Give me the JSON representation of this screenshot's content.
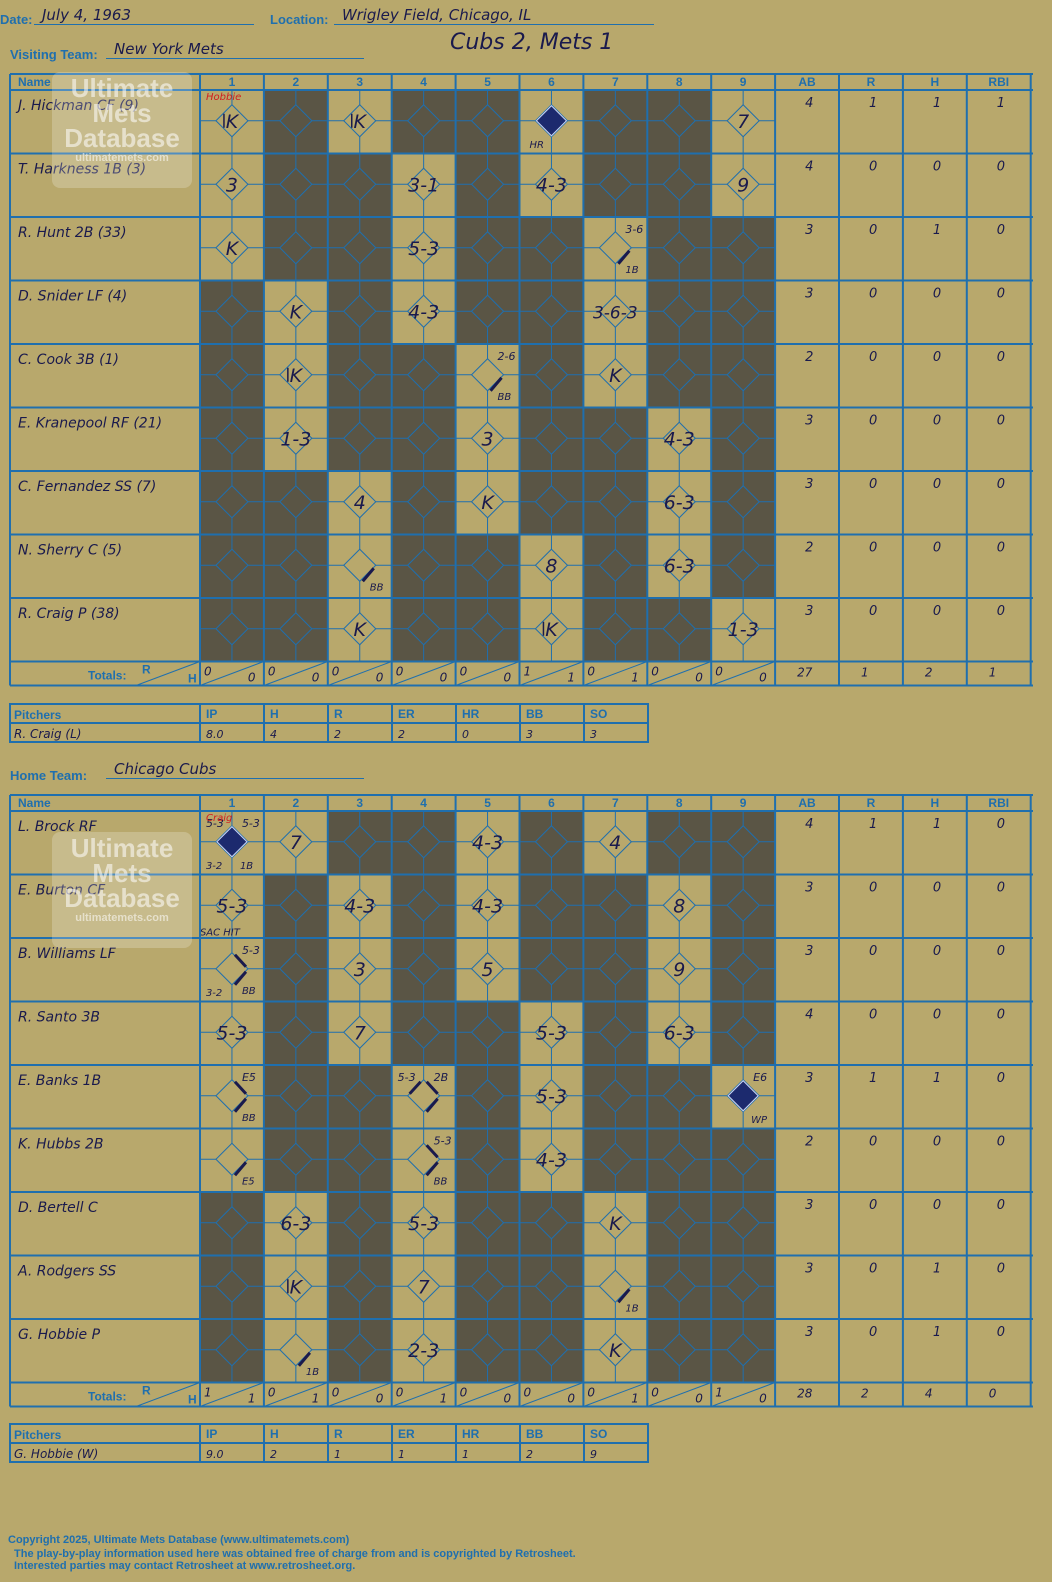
{
  "header": {
    "date_label": "Date:",
    "date_value": "July 4, 1963",
    "location_label": "Location:",
    "location_value": "Wrigley Field, Chicago, IL",
    "visiting_label": "Visiting Team:",
    "visiting_value": "New York Mets",
    "home_label": "Home Team:",
    "home_value": "Chicago Cubs",
    "headline": "Cubs 2, Mets 1"
  },
  "columns": {
    "name": "Name",
    "innings": [
      "1",
      "2",
      "3",
      "4",
      "5",
      "6",
      "7",
      "8",
      "9"
    ],
    "stats": [
      "AB",
      "R",
      "H",
      "RBI"
    ],
    "totals_label": "Totals:",
    "r_label": "R",
    "h_label": "H"
  },
  "watermark": {
    "line1": "Ultimate",
    "line2": "Mets",
    "line3": "Database",
    "url": "ultimatemets.com"
  },
  "visitors": {
    "pitcher_change_note": "Hobbie",
    "players": [
      {
        "name": "J. Hickman CF (9)",
        "stats": [
          "4",
          "1",
          "1",
          "1"
        ],
        "cells": [
          {
            "inn": 1,
            "text": "K",
            "rev": true
          },
          {
            "inn": 3,
            "text": "K",
            "rev": true
          },
          {
            "inn": 6,
            "run": true,
            "note": "HR"
          },
          {
            "inn": 9,
            "text": "7"
          }
        ]
      },
      {
        "name": "T. Harkness 1B (3)",
        "stats": [
          "4",
          "0",
          "0",
          "0"
        ],
        "cells": [
          {
            "inn": 1,
            "text": "3"
          },
          {
            "inn": 4,
            "text": "3-1"
          },
          {
            "inn": 6,
            "text": "4-3"
          },
          {
            "inn": 9,
            "text": "9"
          }
        ]
      },
      {
        "name": "R. Hunt 2B (33)",
        "stats": [
          "3",
          "0",
          "1",
          "0"
        ],
        "cells": [
          {
            "inn": 1,
            "text": "K"
          },
          {
            "inn": 4,
            "text": "5-3"
          },
          {
            "inn": 7,
            "hit": "1B",
            "corner": "3-6"
          }
        ]
      },
      {
        "name": "D. Snider LF (4)",
        "stats": [
          "3",
          "0",
          "0",
          "0"
        ],
        "cells": [
          {
            "inn": 2,
            "text": "K"
          },
          {
            "inn": 4,
            "text": "4-3"
          },
          {
            "inn": 7,
            "text": "3-6-3"
          }
        ]
      },
      {
        "name": "C. Cook 3B (1)",
        "stats": [
          "2",
          "0",
          "0",
          "0"
        ],
        "cells": [
          {
            "inn": 2,
            "text": "K",
            "rev": true
          },
          {
            "inn": 5,
            "hit": "BB",
            "corner": "2-6"
          },
          {
            "inn": 7,
            "text": "K"
          }
        ]
      },
      {
        "name": "E. Kranepool RF (21)",
        "stats": [
          "3",
          "0",
          "0",
          "0"
        ],
        "cells": [
          {
            "inn": 2,
            "text": "1-3"
          },
          {
            "inn": 5,
            "text": "3"
          },
          {
            "inn": 8,
            "text": "4-3"
          }
        ]
      },
      {
        "name": "C. Fernandez SS (7)",
        "stats": [
          "3",
          "0",
          "0",
          "0"
        ],
        "cells": [
          {
            "inn": 3,
            "text": "4"
          },
          {
            "inn": 5,
            "text": "K"
          },
          {
            "inn": 8,
            "text": "6-3"
          }
        ]
      },
      {
        "name": "N. Sherry C (5)",
        "stats": [
          "2",
          "0",
          "0",
          "0"
        ],
        "cells": [
          {
            "inn": 3,
            "hit": "BB"
          },
          {
            "inn": 6,
            "text": "8"
          },
          {
            "inn": 8,
            "text": "6-3"
          }
        ]
      },
      {
        "name": "R. Craig P (38)",
        "stats": [
          "3",
          "0",
          "0",
          "0"
        ],
        "cells": [
          {
            "inn": 3,
            "text": "K"
          },
          {
            "inn": 6,
            "text": "K",
            "rev": true
          },
          {
            "inn": 9,
            "text": "1-3"
          }
        ]
      }
    ],
    "totals": [
      [
        "0",
        "0"
      ],
      [
        "0",
        "0"
      ],
      [
        "0",
        "0"
      ],
      [
        "0",
        "0"
      ],
      [
        "0",
        "0"
      ],
      [
        "1",
        "1"
      ],
      [
        "0",
        "1"
      ],
      [
        "0",
        "0"
      ],
      [
        "0",
        "0"
      ]
    ],
    "totals_stats": [
      "27",
      "1",
      "2",
      "1"
    ],
    "active": [
      [
        1,
        0,
        1,
        0,
        0,
        1,
        0,
        0,
        1
      ],
      [
        1,
        0,
        0,
        1,
        0,
        1,
        0,
        0,
        1
      ],
      [
        1,
        0,
        0,
        1,
        0,
        0,
        1,
        0,
        0
      ],
      [
        0,
        1,
        0,
        1,
        0,
        0,
        1,
        0,
        0
      ],
      [
        0,
        1,
        0,
        0,
        1,
        0,
        1,
        0,
        0
      ],
      [
        0,
        1,
        0,
        0,
        1,
        0,
        0,
        1,
        0
      ],
      [
        0,
        0,
        1,
        0,
        1,
        0,
        0,
        1,
        0
      ],
      [
        0,
        0,
        1,
        0,
        0,
        1,
        0,
        1,
        0
      ],
      [
        0,
        0,
        1,
        0,
        0,
        1,
        0,
        0,
        1
      ]
    ]
  },
  "visitors_pitching": {
    "label": "Pitchers",
    "headers": [
      "IP",
      "H",
      "R",
      "ER",
      "HR",
      "BB",
      "SO"
    ],
    "rows": [
      {
        "name": "R. Craig (L)",
        "stats": [
          "8.0",
          "4",
          "2",
          "2",
          "0",
          "3",
          "3"
        ]
      }
    ]
  },
  "home": {
    "pitcher_change_note": "Craig",
    "players": [
      {
        "name": "L. Brock RF",
        "stats": [
          "4",
          "1",
          "1",
          "0"
        ],
        "cells": [
          {
            "inn": 1,
            "run": true,
            "note": "1B",
            "corner": "5-3",
            "extra": "3-2",
            "tl": "5-3"
          },
          {
            "inn": 2,
            "text": "7"
          },
          {
            "inn": 5,
            "text": "4-3"
          },
          {
            "inn": 7,
            "text": "4"
          }
        ]
      },
      {
        "name": "E. Burton CF",
        "stats": [
          "3",
          "0",
          "0",
          "0"
        ],
        "cells": [
          {
            "inn": 1,
            "text": "5-3",
            "note2": "SAC HIT"
          },
          {
            "inn": 3,
            "text": "4-3"
          },
          {
            "inn": 5,
            "text": "4-3"
          },
          {
            "inn": 8,
            "text": "8"
          }
        ]
      },
      {
        "name": "B. Williams LF",
        "stats": [
          "3",
          "0",
          "0",
          "0"
        ],
        "cells": [
          {
            "inn": 1,
            "hit": "BB",
            "two": true,
            "corner": "5-3",
            "extra": "3-2"
          },
          {
            "inn": 3,
            "text": "3"
          },
          {
            "inn": 5,
            "text": "5"
          },
          {
            "inn": 8,
            "text": "9"
          }
        ]
      },
      {
        "name": "R. Santo 3B",
        "stats": [
          "4",
          "0",
          "0",
          "0"
        ],
        "cells": [
          {
            "inn": 1,
            "text": "5-3"
          },
          {
            "inn": 3,
            "text": "7"
          },
          {
            "inn": 6,
            "text": "5-3"
          },
          {
            "inn": 8,
            "text": "6-3"
          }
        ]
      },
      {
        "name": "E. Banks 1B",
        "stats": [
          "3",
          "1",
          "1",
          "0"
        ],
        "cells": [
          {
            "inn": 1,
            "hit": "BB",
            "two": true,
            "corner": "E5"
          },
          {
            "inn": 4,
            "hit": "",
            "three": true,
            "corner": "2B",
            "tl": "5-3"
          },
          {
            "inn": 6,
            "text": "5-3"
          },
          {
            "inn": 9,
            "run": true,
            "corner": "E6",
            "note": "WP"
          }
        ]
      },
      {
        "name": "K. Hubbs 2B",
        "stats": [
          "2",
          "0",
          "0",
          "0"
        ],
        "cells": [
          {
            "inn": 1,
            "hit": "E5"
          },
          {
            "inn": 4,
            "hit": "BB",
            "two": true,
            "corner": "5-3"
          },
          {
            "inn": 6,
            "text": "4-3"
          }
        ]
      },
      {
        "name": "D. Bertell C",
        "stats": [
          "3",
          "0",
          "0",
          "0"
        ],
        "cells": [
          {
            "inn": 2,
            "text": "6-3"
          },
          {
            "inn": 4,
            "text": "5-3"
          },
          {
            "inn": 7,
            "text": "K"
          }
        ]
      },
      {
        "name": "A. Rodgers SS",
        "stats": [
          "3",
          "0",
          "1",
          "0"
        ],
        "cells": [
          {
            "inn": 2,
            "text": "K",
            "rev": true
          },
          {
            "inn": 4,
            "text": "7"
          },
          {
            "inn": 7,
            "hit": "1B"
          }
        ]
      },
      {
        "name": "G. Hobbie P",
        "stats": [
          "3",
          "0",
          "1",
          "0"
        ],
        "cells": [
          {
            "inn": 2,
            "hit": "1B"
          },
          {
            "inn": 4,
            "text": "2-3"
          },
          {
            "inn": 7,
            "text": "K"
          }
        ]
      }
    ],
    "totals": [
      [
        "1",
        "1"
      ],
      [
        "0",
        "1"
      ],
      [
        "0",
        "0"
      ],
      [
        "0",
        "1"
      ],
      [
        "0",
        "0"
      ],
      [
        "0",
        "0"
      ],
      [
        "0",
        "1"
      ],
      [
        "0",
        "0"
      ],
      [
        "1",
        "0"
      ]
    ],
    "totals_stats": [
      "28",
      "2",
      "4",
      "0"
    ],
    "active": [
      [
        1,
        1,
        0,
        0,
        1,
        0,
        1,
        0,
        0
      ],
      [
        1,
        0,
        1,
        0,
        1,
        0,
        0,
        1,
        0
      ],
      [
        1,
        0,
        1,
        0,
        1,
        0,
        0,
        1,
        0
      ],
      [
        1,
        0,
        1,
        0,
        0,
        1,
        0,
        1,
        0
      ],
      [
        1,
        0,
        0,
        1,
        0,
        1,
        0,
        0,
        1
      ],
      [
        1,
        0,
        0,
        1,
        0,
        1,
        0,
        0,
        0
      ],
      [
        0,
        1,
        0,
        1,
        0,
        0,
        1,
        0,
        0
      ],
      [
        0,
        1,
        0,
        1,
        0,
        0,
        1,
        0,
        0
      ],
      [
        0,
        1,
        0,
        1,
        0,
        0,
        1,
        0,
        0
      ]
    ]
  },
  "home_pitching": {
    "label": "Pitchers",
    "headers": [
      "IP",
      "H",
      "R",
      "ER",
      "HR",
      "BB",
      "SO"
    ],
    "rows": [
      {
        "name": "G. Hobbie (W)",
        "stats": [
          "9.0",
          "2",
          "1",
          "1",
          "1",
          "2",
          "9"
        ]
      }
    ]
  },
  "footer": {
    "copyright": "Copyright 2025, Ultimate Mets Database (www.ultimatemets.com)",
    "line2": "The play-by-play information used here was obtained free of charge from and is copyrighted by Retrosheet.",
    "line3": "Interested parties may contact Retrosheet at www.retrosheet.org."
  },
  "colors": {
    "background": "#b8a86c",
    "inactive_cell": "#5a5545",
    "grid_line": "#1f6fae",
    "ink": "#1a1a4d",
    "red_note": "#d02020"
  }
}
